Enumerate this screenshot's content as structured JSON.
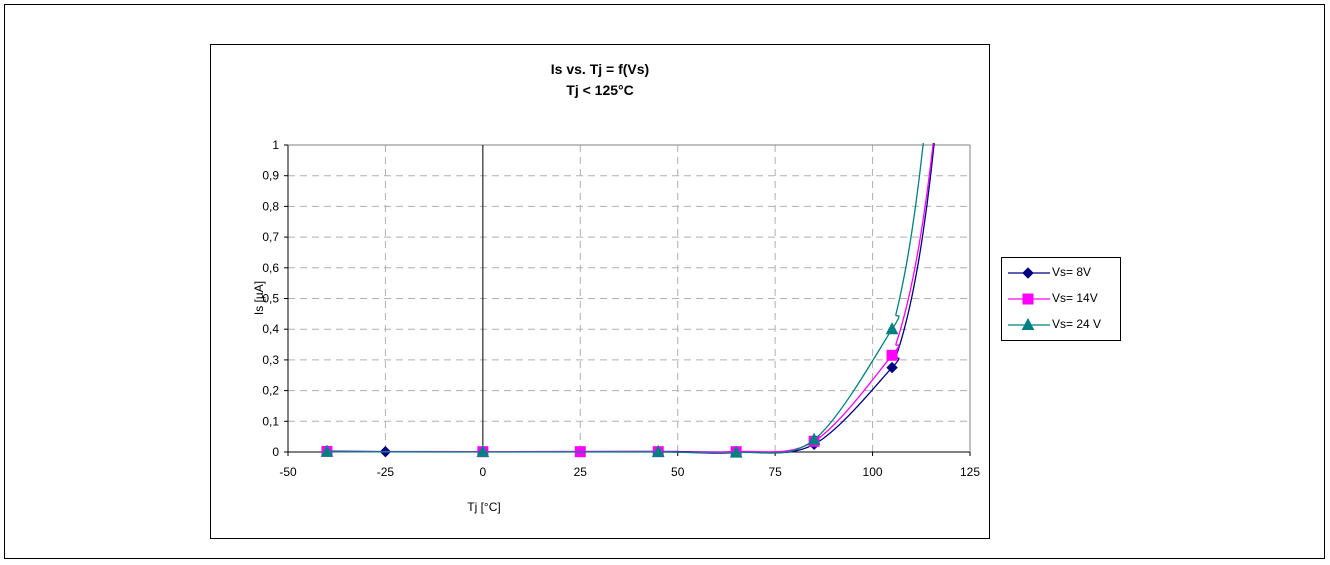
{
  "chart_data": {
    "type": "line",
    "title": "Is vs. Tj = f(Vs)",
    "subtitle": "Tj < 125°C",
    "xlabel": "Tj [°C]",
    "ylabel": "Is [µA]",
    "xlim": [
      -50,
      125
    ],
    "ylim": [
      0,
      1
    ],
    "x_ticks": [
      "-50",
      "-25",
      "0",
      "25",
      "50",
      "75",
      "100",
      "125"
    ],
    "y_ticks": [
      "0",
      "0,1",
      "0,2",
      "0,3",
      "0,4",
      "0,5",
      "0,6",
      "0,7",
      "0,8",
      "0,9",
      "1"
    ],
    "grid": true,
    "legend_position": "right",
    "series": [
      {
        "name": "Vs= 8V",
        "color": "#000080",
        "marker": "diamond",
        "x": [
          -40,
          -25,
          0,
          45,
          65,
          85,
          105
        ],
        "y": [
          0.003,
          0.001,
          0.001,
          0.002,
          0.001,
          0.025,
          0.275
        ]
      },
      {
        "name": "Vs= 14V",
        "color": "#ff00ff",
        "marker": "square",
        "x": [
          -40,
          0,
          25,
          45,
          65,
          85,
          105
        ],
        "y": [
          0.002,
          0.001,
          0.001,
          0.001,
          0.001,
          0.035,
          0.315
        ]
      },
      {
        "name": "Vs= 24 V",
        "color": "#008080",
        "marker": "triangle",
        "x": [
          -40,
          0,
          45,
          65,
          85,
          105
        ],
        "y": [
          0.001,
          0.0,
          0.0,
          -0.002,
          0.04,
          0.4
        ]
      }
    ]
  }
}
